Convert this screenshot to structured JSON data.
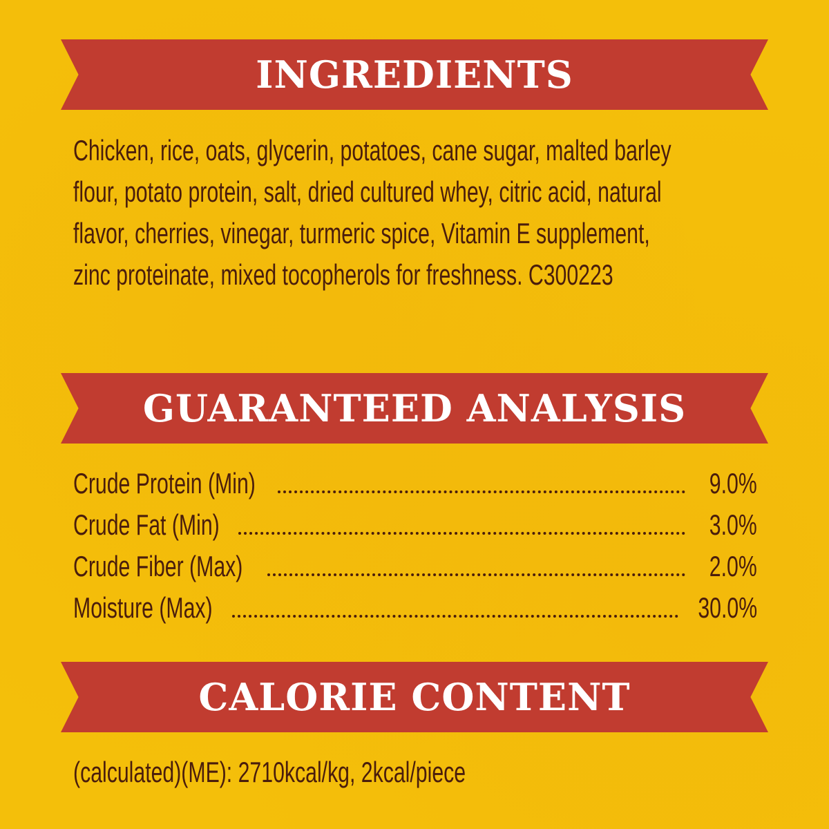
{
  "colors": {
    "background": "#f4bf0a",
    "banner": "#c13c30",
    "text": "#4a1d0c",
    "banner_text": "#ffffff"
  },
  "ingredients": {
    "heading": "INGREDIENTS",
    "lines": [
      "Chicken, rice, oats, glycerin, potatoes, cane sugar, malted barley",
      "flour, potato protein, salt, dried cultured whey, citric acid, natural",
      "flavor, cherries, vinegar, turmeric spice, Vitamin E supplement,",
      "zinc proteinate, mixed tocopherols for freshness. C300223"
    ]
  },
  "analysis": {
    "heading": "GUARANTEED ANALYSIS",
    "rows": [
      {
        "label": "Crude Protein (Min)",
        "value": "9.0%"
      },
      {
        "label": "Crude Fat (Min)",
        "value": "3.0%"
      },
      {
        "label": "Crude Fiber (Max)",
        "value": "2.0%"
      },
      {
        "label": "Moisture (Max)",
        "value": "30.0%"
      }
    ]
  },
  "calories": {
    "heading": "CALORIE CONTENT",
    "text": "(calculated)(ME): 2710kcal/kg, 2kcal/piece"
  }
}
